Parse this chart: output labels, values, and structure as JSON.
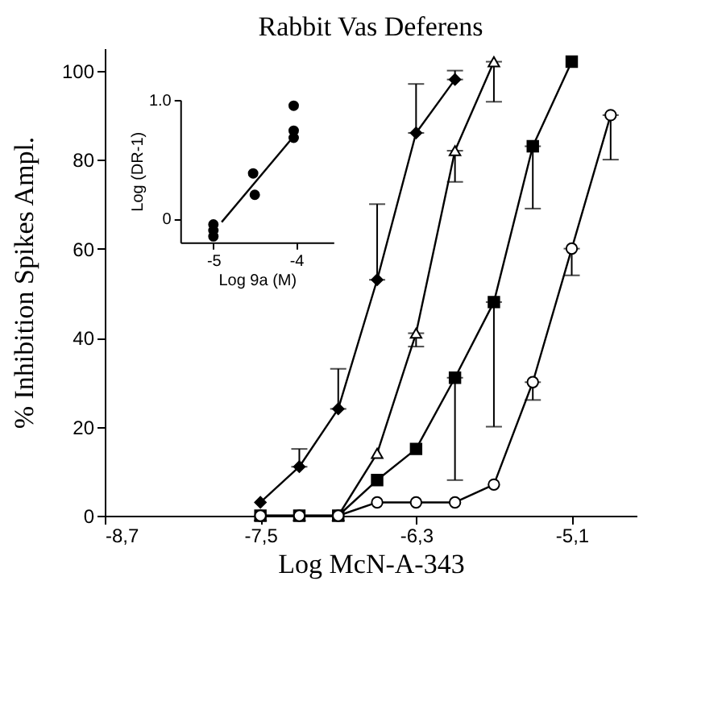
{
  "chart_data": [
    {
      "type": "line",
      "title": "Rabbit Vas Deferens",
      "xlabel": "Log McN-A-343",
      "ylabel": "% Inhibition Spikes Ampl.",
      "xlim": [
        -8.7,
        -4.6
      ],
      "xticks": [
        {
          "value": -8.7,
          "label": "-8,7"
        },
        {
          "value": -7.5,
          "label": "-7,5"
        },
        {
          "value": -6.3,
          "label": "-6,3"
        },
        {
          "value": -5.1,
          "label": "-5,1"
        }
      ],
      "ylim": [
        0,
        105
      ],
      "yticks": [
        0,
        20,
        40,
        60,
        80,
        100
      ],
      "series": [
        {
          "marker": "diamond",
          "color": "#000000",
          "x": [
            -7.5,
            -7.2,
            -6.9,
            -6.6,
            -6.3,
            -6.0
          ],
          "values": [
            3,
            11,
            24,
            53,
            86,
            98
          ],
          "errors": [
            null,
            [
              11,
              15
            ],
            [
              24,
              33
            ],
            [
              53,
              70
            ],
            [
              86,
              97
            ],
            [
              98,
              100
            ]
          ]
        },
        {
          "marker": "triangle",
          "color": "#ffffff",
          "x": [
            -7.5,
            -7.2,
            -6.9,
            -6.6,
            -6.3,
            -6.0,
            -5.7
          ],
          "values": [
            0,
            0,
            0,
            14,
            41,
            82,
            102
          ],
          "errors": [
            null,
            null,
            null,
            null,
            [
              38,
              41
            ],
            [
              75,
              82
            ],
            [
              93,
              102
            ]
          ]
        },
        {
          "marker": "square",
          "color": "#000000",
          "x": [
            -7.5,
            -7.2,
            -6.9,
            -6.6,
            -6.3,
            -6.0,
            -5.7,
            -5.4,
            -5.1
          ],
          "values": [
            0,
            0,
            0,
            8,
            15,
            31,
            48,
            83,
            102
          ],
          "errors": [
            null,
            null,
            null,
            null,
            null,
            [
              8,
              31
            ],
            [
              20,
              48
            ],
            [
              69,
              83
            ],
            null
          ]
        },
        {
          "marker": "circle",
          "color": "#ffffff",
          "x": [
            -7.5,
            -7.2,
            -6.9,
            -6.6,
            -6.3,
            -6.0,
            -5.7,
            -5.4,
            -5.1,
            -4.8
          ],
          "values": [
            0,
            0,
            0,
            3,
            3,
            3,
            7,
            30,
            60,
            90
          ],
          "errors": [
            null,
            null,
            null,
            null,
            null,
            null,
            null,
            [
              26,
              30
            ],
            [
              54,
              60
            ],
            [
              80,
              90
            ]
          ]
        }
      ]
    },
    {
      "type": "scatter",
      "xlabel": "Log 9a (M)",
      "ylabel": "Log (DR-1)",
      "xlim": [
        -5.4,
        -3.55
      ],
      "xticks": [
        -5,
        -4
      ],
      "ylim": [
        -0.2,
        1.0
      ],
      "yticks": [
        0,
        {
          "value": 1.0,
          "label": "1.0"
        }
      ],
      "series": [
        {
          "marker": "circle",
          "color": "#000000",
          "x": [
            -5.0,
            -5.0,
            -5.0,
            -4.52,
            -4.5,
            -4.03,
            -4.03,
            -4.03
          ],
          "values": [
            -0.05,
            -0.1,
            -0.15,
            0.38,
            0.2,
            0.95,
            0.74,
            0.68
          ]
        },
        {
          "type": "line",
          "marker": "none",
          "color": "#000000",
          "x": [
            -4.9,
            -4.02
          ],
          "values": [
            -0.03,
            0.7
          ]
        }
      ]
    }
  ]
}
